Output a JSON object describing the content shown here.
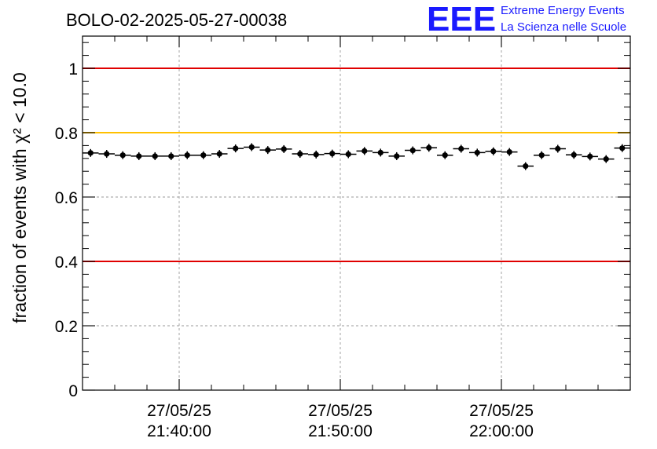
{
  "chart_data": {
    "type": "scatter",
    "title": "BOLO-02-2025-05-27-00038",
    "ylabel": "fraction of events with χ² < 10.0",
    "ylim": [
      0,
      1.1
    ],
    "yticks": [
      {
        "value": 0,
        "label": "0"
      },
      {
        "value": 0.2,
        "label": "0.2"
      },
      {
        "value": 0.4,
        "label": "0.4"
      },
      {
        "value": 0.6,
        "label": "0.6"
      },
      {
        "value": 0.8,
        "label": "0.8"
      },
      {
        "value": 1.0,
        "label": "1"
      }
    ],
    "x_time_range": [
      "21:34:00",
      "22:08:00"
    ],
    "xticks": [
      {
        "time": "21:40:00",
        "date": "27/05/25",
        "label": "21:40:00"
      },
      {
        "time": "21:50:00",
        "date": "27/05/25",
        "label": "21:50:00"
      },
      {
        "time": "22:00:00",
        "date": "27/05/25",
        "label": "22:00:00"
      }
    ],
    "grid": true,
    "reference_lines": [
      {
        "y": 1.0,
        "color": "#e00000"
      },
      {
        "y": 0.8,
        "color": "#ffc000"
      },
      {
        "y": 0.4,
        "color": "#e00000"
      }
    ],
    "bin_width_min": 1.0,
    "points_x_min": [
      0.5,
      1.5,
      2.5,
      3.5,
      4.5,
      5.5,
      6.5,
      7.5,
      8.5,
      9.5,
      10.5,
      11.5,
      12.5,
      13.5,
      14.5,
      15.5,
      16.5,
      17.5,
      18.5,
      19.5,
      20.5,
      21.5,
      22.5,
      23.5,
      24.5,
      25.5,
      26.5,
      27.5,
      28.5,
      29.5,
      30.5,
      31.5,
      32.5,
      33.5
    ],
    "values": [
      0.737,
      0.734,
      0.73,
      0.727,
      0.727,
      0.727,
      0.73,
      0.73,
      0.734,
      0.751,
      0.755,
      0.746,
      0.749,
      0.734,
      0.732,
      0.735,
      0.733,
      0.743,
      0.738,
      0.727,
      0.745,
      0.753,
      0.73,
      0.75,
      0.738,
      0.742,
      0.74,
      0.696,
      0.73,
      0.75,
      0.731,
      0.726,
      0.718,
      0.752
    ],
    "marker_color": "#000000"
  },
  "logo": {
    "mark": "EEE",
    "line1": "Extreme Energy Events",
    "line2": "La Scienza nelle Scuole",
    "color": "#1a1aff"
  }
}
